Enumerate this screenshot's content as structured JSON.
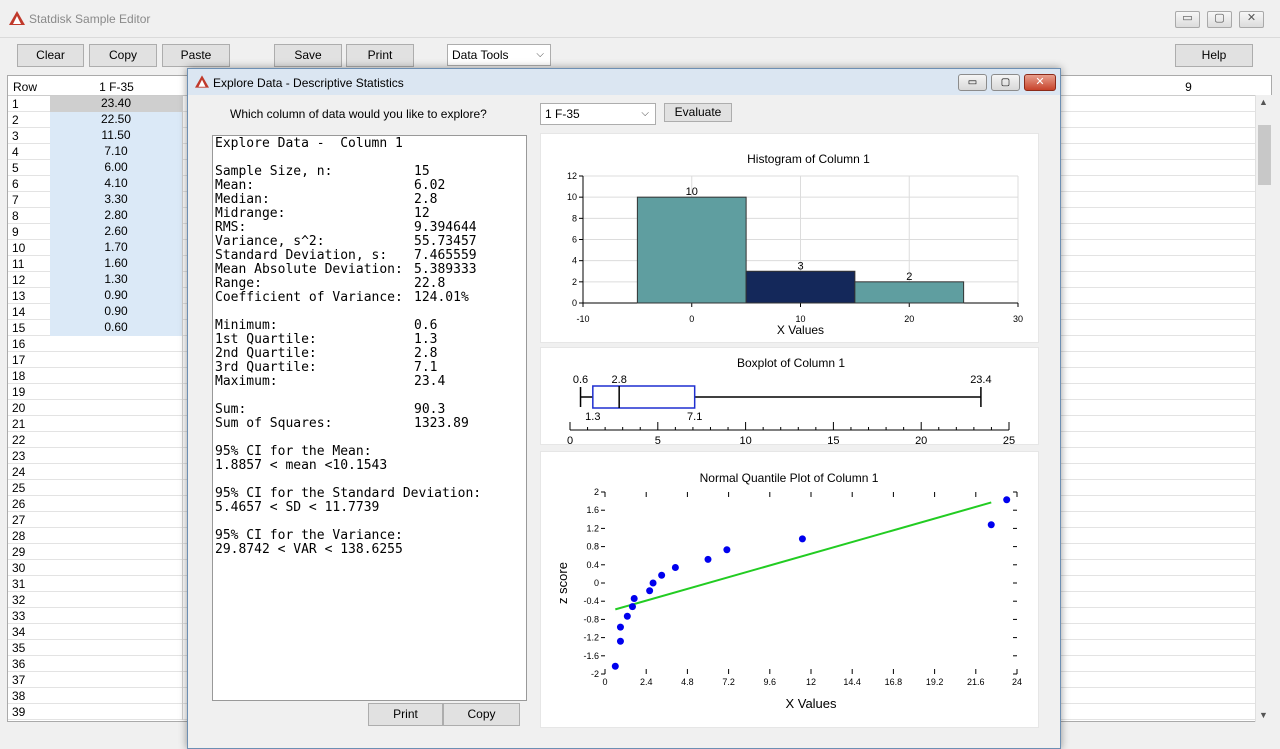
{
  "app": {
    "title": "Statdisk Sample Editor",
    "minimize": "▭",
    "restore": "▢",
    "close": "✕"
  },
  "toolbar": {
    "clear": "Clear",
    "copy": "Copy",
    "paste": "Paste",
    "save": "Save",
    "print": "Print",
    "data_tools": "Data Tools",
    "help": "Help"
  },
  "grid": {
    "row_header": "Row",
    "col1_header": "1 F-35",
    "col9_header": "9",
    "rows": [
      "1",
      "2",
      "3",
      "4",
      "5",
      "6",
      "7",
      "8",
      "9",
      "10",
      "11",
      "12",
      "13",
      "14",
      "15",
      "16",
      "17",
      "18",
      "19",
      "20",
      "21",
      "22",
      "23",
      "24",
      "25",
      "26",
      "27",
      "28",
      "29",
      "30",
      "31",
      "32",
      "33",
      "34",
      "35",
      "36",
      "37",
      "38",
      "39"
    ],
    "col1": [
      "23.40",
      "22.50",
      "11.50",
      "7.10",
      "6.00",
      "4.10",
      "3.30",
      "2.80",
      "2.60",
      "1.70",
      "1.60",
      "1.30",
      "0.90",
      "0.90",
      "0.60"
    ]
  },
  "dialog": {
    "title": "Explore Data - Descriptive Statistics",
    "question": "Which column of data would you like to explore?",
    "column_select": "1 F-35",
    "evaluate": "Evaluate",
    "print": "Print",
    "copy": "Copy",
    "minimize": "▭",
    "restore": "▢",
    "close": "✕"
  },
  "stats": {
    "heading": "Explore Data -  Column 1",
    "lines": [
      {
        "label": "Sample Size, n:",
        "value": "15"
      },
      {
        "label": "Mean:",
        "value": "6.02"
      },
      {
        "label": "Median:",
        "value": "2.8"
      },
      {
        "label": "Midrange:",
        "value": "12"
      },
      {
        "label": "RMS:",
        "value": "9.394644"
      },
      {
        "label": "Variance, s^2:",
        "value": "55.73457"
      },
      {
        "label": "Standard Deviation, s:",
        "value": "7.465559"
      },
      {
        "label": "Mean Absolute Deviation:",
        "value": "5.389333"
      },
      {
        "label": "Range:",
        "value": "22.8"
      },
      {
        "label": "Coefficient of Variance:",
        "value": "124.01%"
      },
      {
        "label": "",
        "value": ""
      },
      {
        "label": "Minimum:",
        "value": "0.6"
      },
      {
        "label": "1st Quartile:",
        "value": "1.3"
      },
      {
        "label": "2nd Quartile:",
        "value": "2.8"
      },
      {
        "label": "3rd Quartile:",
        "value": "7.1"
      },
      {
        "label": "Maximum:",
        "value": "23.4"
      },
      {
        "label": "",
        "value": ""
      },
      {
        "label": "Sum:",
        "value": "90.3"
      },
      {
        "label": "Sum of Squares:",
        "value": "1323.89"
      },
      {
        "label": "",
        "value": ""
      },
      {
        "label": "95% CI for the Mean:",
        "value": ""
      },
      {
        "label": "1.8857 < mean <10.1543",
        "value": ""
      },
      {
        "label": "",
        "value": ""
      },
      {
        "label": "95% CI for the Standard Deviation:",
        "value": ""
      },
      {
        "label": "5.4657 < SD < 11.7739",
        "value": ""
      },
      {
        "label": "",
        "value": ""
      },
      {
        "label": "95% CI for the Variance:",
        "value": ""
      },
      {
        "label": "29.8742 < VAR < 138.6255",
        "value": ""
      }
    ]
  },
  "colors": {
    "bar": "#5f9ea0",
    "bar_highlight": "#14285a",
    "box": "#1f2fd0",
    "points": "#0000ee",
    "line": "#22cc22"
  },
  "chart_data": [
    {
      "type": "bar",
      "title": "Histogram of Column 1",
      "xlabel": "X Values",
      "bins": [
        [
          -5,
          5
        ],
        [
          5,
          15
        ],
        [
          15,
          25
        ]
      ],
      "values": [
        10,
        3,
        2
      ],
      "data_labels": [
        "10",
        "3",
        "2"
      ],
      "xlim": [
        -10,
        30
      ],
      "ylim": [
        0,
        12
      ],
      "x_ticks": [
        "-10",
        "0",
        "10",
        "20",
        "30"
      ],
      "y_ticks": [
        "0",
        "2",
        "4",
        "6",
        "8",
        "10",
        "12"
      ],
      "grid": true
    },
    {
      "type": "boxplot",
      "title": "Boxplot of Column 1",
      "min": 0.6,
      "q1": 1.3,
      "median": 2.8,
      "q3": 7.1,
      "max": 23.4,
      "labels": {
        "min": "0.6",
        "q1": "1.3",
        "median": "2.8",
        "q3": "7.1",
        "max": "23.4"
      },
      "xlim": [
        0,
        25
      ],
      "x_ticks": [
        "0",
        "5",
        "10",
        "15",
        "20",
        "25"
      ]
    },
    {
      "type": "scatter",
      "title": "Normal Quantile Plot of Column 1",
      "xlabel": "X Values",
      "ylabel": "z score",
      "x": [
        0.6,
        0.9,
        0.9,
        1.3,
        1.6,
        1.7,
        2.6,
        2.8,
        3.3,
        4.1,
        6.0,
        7.1,
        11.5,
        22.5,
        23.4
      ],
      "y": [
        -1.83,
        -1.28,
        -0.97,
        -0.73,
        -0.52,
        -0.34,
        -0.17,
        0,
        0.17,
        0.34,
        0.52,
        0.73,
        0.97,
        1.28,
        1.83
      ],
      "trend": [
        [
          0.6,
          -0.58
        ],
        [
          22.5,
          1.77
        ]
      ],
      "xlim": [
        0,
        24
      ],
      "ylim": [
        -2,
        2
      ],
      "x_ticks": [
        "0",
        "2.4",
        "4.8",
        "7.2",
        "9.6",
        "12",
        "14.4",
        "16.8",
        "19.2",
        "21.6",
        "24"
      ],
      "y_ticks": [
        "2",
        "1.6",
        "1.2",
        "0.8",
        "0.4",
        "0",
        "-0.4",
        "-0.8",
        "-1.2",
        "-1.6",
        "-2"
      ]
    }
  ]
}
